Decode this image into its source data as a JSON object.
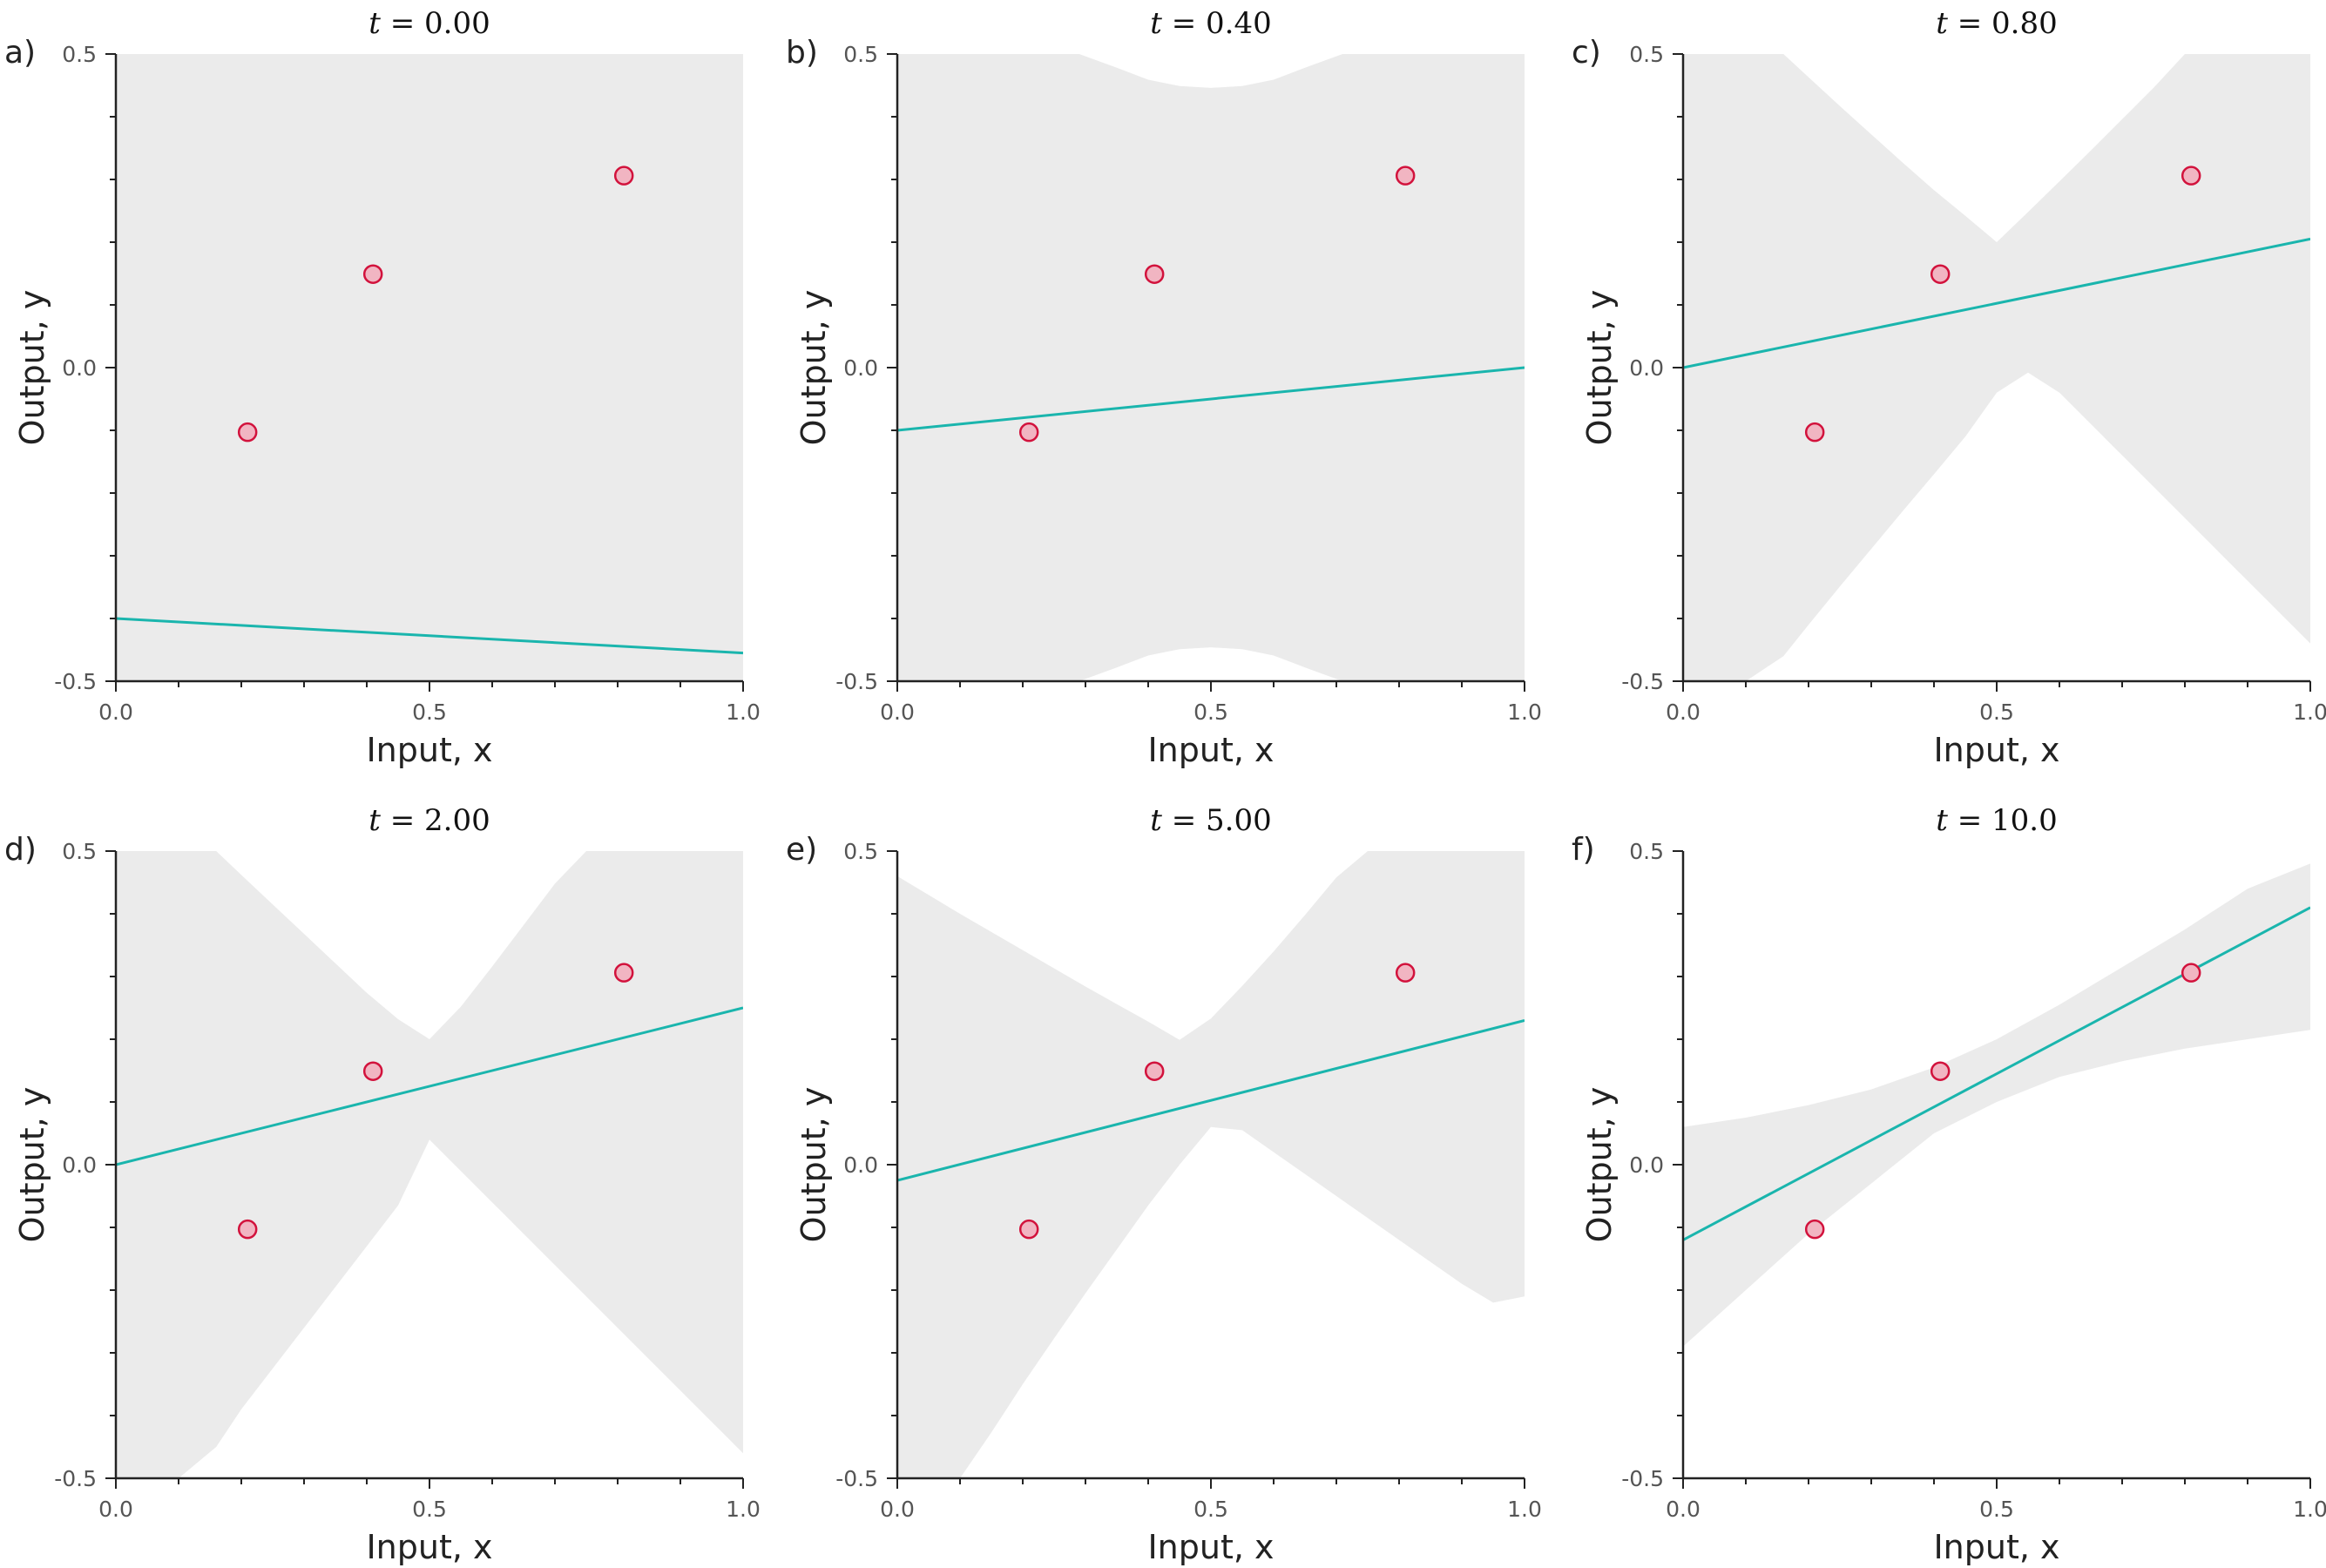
{
  "chart_data": [
    {
      "type": "line",
      "panel_label": "a)",
      "title": {
        "var": "t",
        "value": "0.00"
      },
      "xlabel": "Input, x",
      "ylabel": "Output, y",
      "xlim": [
        0.0,
        1.0
      ],
      "ylim": [
        -0.5,
        0.5
      ],
      "xticks": [
        "0.0",
        "0.5",
        "1.0"
      ],
      "yticks": [
        "-0.5",
        "0.0",
        "0.5"
      ],
      "points": [
        {
          "x": 0.21,
          "y": -0.103
        },
        {
          "x": 0.41,
          "y": 0.149
        },
        {
          "x": 0.81,
          "y": 0.306
        }
      ],
      "fit_line": {
        "intercept": -0.4,
        "slope": -0.055
      },
      "band": {
        "x": [
          0.0,
          1.0
        ],
        "upper": [
          0.5,
          0.5
        ],
        "lower": [
          -0.5,
          -0.5
        ]
      }
    },
    {
      "type": "line",
      "panel_label": "b)",
      "title": {
        "var": "t",
        "value": "0.40"
      },
      "xlabel": "Input, x",
      "ylabel": "Output, y",
      "xlim": [
        0.0,
        1.0
      ],
      "ylim": [
        -0.5,
        0.5
      ],
      "xticks": [
        "0.0",
        "0.5",
        "1.0"
      ],
      "yticks": [
        "-0.5",
        "0.0",
        "0.5"
      ],
      "points": [
        {
          "x": 0.21,
          "y": -0.103
        },
        {
          "x": 0.41,
          "y": 0.149
        },
        {
          "x": 0.81,
          "y": 0.306
        }
      ],
      "fit_line": {
        "intercept": -0.1,
        "slope": 0.1
      },
      "band": {
        "x": [
          0.0,
          0.29,
          0.35,
          0.4,
          0.45,
          0.5,
          0.55,
          0.6,
          0.65,
          0.71,
          1.0
        ],
        "upper": [
          0.5,
          0.5,
          0.478,
          0.459,
          0.449,
          0.446,
          0.449,
          0.459,
          0.478,
          0.5,
          0.5
        ],
        "lower": [
          -0.5,
          -0.5,
          -0.478,
          -0.459,
          -0.449,
          -0.446,
          -0.449,
          -0.459,
          -0.478,
          -0.5,
          -0.5
        ]
      }
    },
    {
      "type": "line",
      "panel_label": "c)",
      "title": {
        "var": "t",
        "value": "0.80"
      },
      "xlabel": "Input, x",
      "ylabel": "Output, y",
      "xlim": [
        0.0,
        1.0
      ],
      "ylim": [
        -0.5,
        0.5
      ],
      "xticks": [
        "0.0",
        "0.5",
        "1.0"
      ],
      "yticks": [
        "-0.5",
        "0.0",
        "0.5"
      ],
      "points": [
        {
          "x": 0.21,
          "y": -0.103
        },
        {
          "x": 0.41,
          "y": 0.149
        },
        {
          "x": 0.81,
          "y": 0.306
        }
      ],
      "fit_line": {
        "intercept": 0.0,
        "slope": 0.205
      },
      "band": {
        "x": [
          0.0,
          0.1,
          0.16,
          0.2,
          0.25,
          0.3,
          0.35,
          0.4,
          0.45,
          0.5,
          0.55,
          0.6,
          0.65,
          0.7,
          0.75,
          0.8,
          0.85,
          0.9,
          0.95,
          1.0
        ],
        "upper": [
          0.5,
          0.5,
          0.5,
          0.463,
          0.417,
          0.372,
          0.327,
          0.283,
          0.242,
          0.2,
          0.248,
          0.297,
          0.346,
          0.396,
          0.446,
          0.5,
          0.5,
          0.5,
          0.5,
          0.5
        ],
        "lower": [
          -0.5,
          -0.5,
          -0.46,
          -0.41,
          -0.349,
          -0.289,
          -0.229,
          -0.17,
          -0.11,
          -0.04,
          -0.008,
          -0.04,
          -0.09,
          -0.14,
          -0.19,
          -0.24,
          -0.29,
          -0.34,
          -0.39,
          -0.44
        ]
      }
    },
    {
      "type": "line",
      "panel_label": "d)",
      "title": {
        "var": "t",
        "value": "2.00"
      },
      "xlabel": "Input, x",
      "ylabel": "Output, y",
      "xlim": [
        0.0,
        1.0
      ],
      "ylim": [
        -0.5,
        0.5
      ],
      "xticks": [
        "0.0",
        "0.5",
        "1.0"
      ],
      "yticks": [
        "-0.5",
        "0.0",
        "0.5"
      ],
      "points": [
        {
          "x": 0.21,
          "y": -0.103
        },
        {
          "x": 0.41,
          "y": 0.149
        },
        {
          "x": 0.81,
          "y": 0.306
        }
      ],
      "fit_line": {
        "intercept": 0.0,
        "slope": 0.25
      },
      "band": {
        "x": [
          0.0,
          0.1,
          0.16,
          0.2,
          0.25,
          0.3,
          0.35,
          0.4,
          0.45,
          0.5,
          0.55,
          0.6,
          0.65,
          0.7,
          0.75,
          0.8,
          0.85,
          0.9,
          0.95,
          1.0
        ],
        "upper": [
          0.5,
          0.5,
          0.5,
          0.462,
          0.415,
          0.368,
          0.321,
          0.274,
          0.232,
          0.2,
          0.252,
          0.316,
          0.382,
          0.448,
          0.5,
          0.5,
          0.5,
          0.5,
          0.5,
          0.5
        ],
        "lower": [
          -0.5,
          -0.5,
          -0.45,
          -0.39,
          -0.325,
          -0.26,
          -0.195,
          -0.13,
          -0.065,
          0.04,
          -0.01,
          -0.06,
          -0.11,
          -0.16,
          -0.21,
          -0.26,
          -0.31,
          -0.36,
          -0.41,
          -0.46
        ]
      }
    },
    {
      "type": "line",
      "panel_label": "e)",
      "title": {
        "var": "t",
        "value": "5.00"
      },
      "xlabel": "Input, x",
      "ylabel": "Output, y",
      "xlim": [
        0.0,
        1.0
      ],
      "ylim": [
        -0.5,
        0.5
      ],
      "xticks": [
        "0.0",
        "0.5",
        "1.0"
      ],
      "yticks": [
        "-0.5",
        "0.0",
        "0.5"
      ],
      "points": [
        {
          "x": 0.21,
          "y": -0.103
        },
        {
          "x": 0.41,
          "y": 0.149
        },
        {
          "x": 0.81,
          "y": 0.306
        }
      ],
      "fit_line": {
        "intercept": -0.025,
        "slope": 0.255
      },
      "band": {
        "x": [
          0.0,
          0.05,
          0.1,
          0.15,
          0.2,
          0.25,
          0.3,
          0.35,
          0.4,
          0.45,
          0.5,
          0.55,
          0.6,
          0.65,
          0.7,
          0.75,
          0.8,
          0.85,
          0.9,
          0.95,
          1.0
        ],
        "upper": [
          0.46,
          0.43,
          0.4,
          0.371,
          0.342,
          0.313,
          0.284,
          0.256,
          0.228,
          0.199,
          0.233,
          0.285,
          0.34,
          0.398,
          0.458,
          0.5,
          0.5,
          0.5,
          0.5,
          0.5,
          0.5
        ],
        "lower": [
          -0.5,
          -0.5,
          -0.5,
          -0.427,
          -0.35,
          -0.277,
          -0.205,
          -0.135,
          -0.065,
          0.0,
          0.06,
          0.055,
          0.02,
          -0.015,
          -0.05,
          -0.085,
          -0.12,
          -0.155,
          -0.19,
          -0.22,
          -0.21
        ]
      }
    },
    {
      "type": "line",
      "panel_label": "f)",
      "title": {
        "var": "t",
        "value": "10.0"
      },
      "xlabel": "Input, x",
      "ylabel": "Output, y",
      "xlim": [
        0.0,
        1.0
      ],
      "ylim": [
        -0.5,
        0.5
      ],
      "xticks": [
        "0.0",
        "0.5",
        "1.0"
      ],
      "yticks": [
        "-0.5",
        "0.0",
        "0.5"
      ],
      "points": [
        {
          "x": 0.21,
          "y": -0.103
        },
        {
          "x": 0.41,
          "y": 0.149
        },
        {
          "x": 0.81,
          "y": 0.306
        }
      ],
      "fit_line": {
        "intercept": -0.12,
        "slope": 0.53
      },
      "band": {
        "x": [
          0.0,
          0.1,
          0.2,
          0.3,
          0.4,
          0.5,
          0.6,
          0.7,
          0.8,
          0.9,
          1.0
        ],
        "upper": [
          0.06,
          0.075,
          0.095,
          0.12,
          0.155,
          0.2,
          0.255,
          0.315,
          0.375,
          0.44,
          0.48
        ],
        "lower": [
          -0.29,
          -0.2,
          -0.11,
          -0.03,
          0.05,
          0.1,
          0.14,
          0.165,
          0.185,
          0.2,
          0.215
        ]
      }
    }
  ]
}
